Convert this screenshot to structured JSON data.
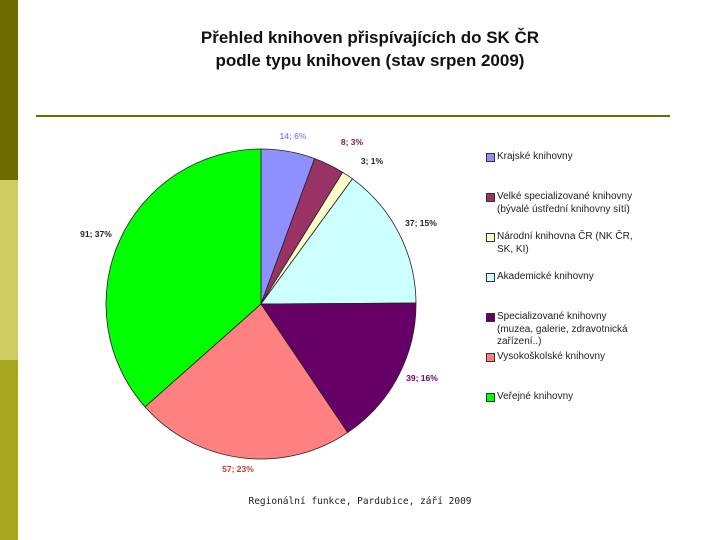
{
  "colors": {
    "bar_dark": "#6b6b00",
    "bar_light": "#cdcd63",
    "bar_mid": "#a8a820",
    "rule": "#6b6b00"
  },
  "title_lines": [
    "Přehled knihoven přispívajících do SK ČR",
    "podle typu knihoven (stav srpen 2009)"
  ],
  "footer": "Regionální funkce, Pardubice, září 2009",
  "chart_data": {
    "type": "pie",
    "title": "Přehled knihoven přispívajících do SK ČR podle typu knihoven (stav srpen 2009)",
    "legend_position": "right",
    "slices": [
      {
        "name": "Krajské knihovny",
        "value": 14,
        "percent": 6,
        "label": "14; 6%",
        "color": "#8f8fff",
        "label_color": "#8f8fff"
      },
      {
        "name": "Velké specializované knihovny (bývalé ústřední knihovny sítí)",
        "value": 8,
        "percent": 3,
        "label": "8; 3%",
        "color": "#993366",
        "label_color": "#7a2050"
      },
      {
        "name": "Národní knihovna ČR (NK ČR, SK, KI)",
        "value": 3,
        "percent": 1,
        "label": "3; 1%",
        "color": "#ffffcc",
        "label_color": "#222222"
      },
      {
        "name": "Akademické knihovny",
        "value": 37,
        "percent": 15,
        "label": "37; 15%",
        "color": "#ccffff",
        "label_color": "#222222"
      },
      {
        "name": "Specializované knihovny (muzea, galerie, zdravotnická zařízení..)",
        "value": 39,
        "percent": 16,
        "label": "39; 16%",
        "color": "#660066",
        "label_color": "#660066"
      },
      {
        "name": "Vysokoškolské knihovny",
        "value": 57,
        "percent": 23,
        "label": "57; 23%",
        "color": "#ff8080",
        "label_color": "#cc3333"
      },
      {
        "name": "Veřejné knihovny",
        "value": 91,
        "percent": 37,
        "label": "91; 37%",
        "color": "#00ff00",
        "label_color": "#222222"
      }
    ],
    "legend": [
      {
        "lines": [
          "Krajské knihovny"
        ],
        "color": "#8f8fff"
      },
      {
        "lines": [
          "Velké specializované knihovny",
          "(bývalé ústřední knihovny sítí)"
        ],
        "color": "#993366"
      },
      {
        "lines": [
          "Národní knihovna ČR (NK ČR,",
          "SK, KI)"
        ],
        "color": "#ffffcc"
      },
      {
        "lines": [
          "Akademické knihovny"
        ],
        "color": "#ccffff"
      },
      {
        "lines": [
          "Specializované knihovny",
          "(muzea, galerie, zdravotnická",
          "zařízení..)"
        ],
        "color": "#660066"
      },
      {
        "lines": [
          "Vysokoškolské knihovny"
        ],
        "color": "#ff8080"
      },
      {
        "lines": [
          "Veřejné knihovny"
        ],
        "color": "#00ff00"
      }
    ]
  }
}
